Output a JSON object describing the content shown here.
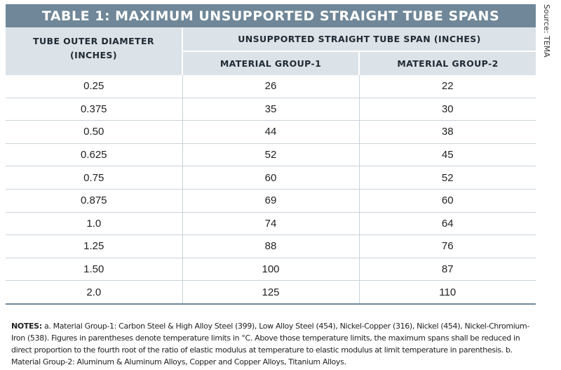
{
  "title": "TABLE 1: MAXIMUM UNSUPPORTED STRAIGHT TUBE SPANS",
  "source": "Source: TEMA",
  "headers": {
    "col1_line1": "TUBE OUTER DIAMETER",
    "col1_line2": "(INCHES)",
    "group": "UNSUPPORTED STRAIGHT TUBE SPAN (INCHES)",
    "sub1": "MATERIAL GROUP-1",
    "sub2": "MATERIAL GROUP-2"
  },
  "rows": [
    [
      "0.25",
      "26",
      "22"
    ],
    [
      "0.375",
      "35",
      "30"
    ],
    [
      "0.50",
      "44",
      "38"
    ],
    [
      "0.625",
      "52",
      "45"
    ],
    [
      "0.75",
      "60",
      "52"
    ],
    [
      "0.875",
      "69",
      "60"
    ],
    [
      "1.0",
      "74",
      "64"
    ],
    [
      "1.25",
      "88",
      "76"
    ],
    [
      "1.50",
      "100",
      "87"
    ],
    [
      "2.0",
      "125",
      "110"
    ]
  ],
  "notes": {
    "lead": "NOTES:",
    "text": " a. Material Group-1: Carbon Steel & High Alloy Steel (399), Low Alloy Steel (454), Nickel-Copper (316), Nickel (454), Nickel-Chromium-Iron (538). Figures in parentheses denote temperature limits in °C. Above those temperature limits, the maximum spans shall be reduced in direct proportion to the fourth root of the ratio of elastic modulus at temperature to elastic modulus at limit temperature in parenthesis. b. Material Group-2: Aluminum & Aluminum Alloys, Copper and Copper Alloys, Titanium Alloys."
  },
  "colors": {
    "title_bar": "#6f8798",
    "header_bg": "#dbe2e8",
    "rule": "#c9d2d9"
  }
}
